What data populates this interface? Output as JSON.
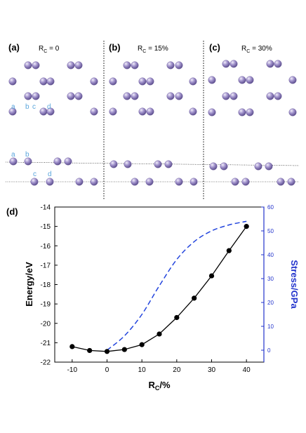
{
  "panels": [
    {
      "letter": "(a)",
      "label_main": "R",
      "label_sub": "C",
      "label_rest": " = 0"
    },
    {
      "letter": "(b)",
      "label_main": "R",
      "label_sub": "C",
      "label_rest": " = 15%"
    },
    {
      "letter": "(c)",
      "label_main": "R",
      "label_sub": "C",
      "label_rest": " = 30%"
    }
  ],
  "atom_labels": {
    "top": [
      "a",
      "b",
      "c",
      "d"
    ],
    "bottom": [
      "a",
      "b",
      "c",
      "d"
    ]
  },
  "colors": {
    "atom": "#8d7fba",
    "atom_label": "#5aa6dc",
    "energy_line": "#000000",
    "stress_line": "#2244dd",
    "stress_axis": "#2233cc"
  },
  "chart_data": {
    "panel": "(d)",
    "type": "line",
    "xlabel_main": "R",
    "xlabel_sub": "C",
    "xlabel_rest": "/%",
    "ylabel": "Energy/eV",
    "y2label": "Stress/GPa",
    "xlim": [
      -15,
      45
    ],
    "ylim": [
      -22,
      -14
    ],
    "y2lim": [
      -5,
      60
    ],
    "xticks": [
      -10,
      0,
      10,
      20,
      30,
      40
    ],
    "yticks": [
      -22,
      -21,
      -20,
      -19,
      -18,
      -17,
      -16,
      -15,
      -14
    ],
    "y2ticks": [
      0,
      10,
      20,
      30,
      40,
      50,
      60
    ],
    "series": [
      {
        "style": "solid-markers",
        "axis": "left",
        "x": [
          -10,
          -5,
          0,
          5,
          10,
          15,
          20,
          25,
          30,
          35,
          40
        ],
        "y": [
          -21.2,
          -21.4,
          -21.45,
          -21.35,
          -21.1,
          -20.55,
          -19.7,
          -18.7,
          -17.55,
          -16.25,
          -15.0
        ]
      },
      {
        "style": "dashed",
        "axis": "right",
        "x": [
          0,
          5,
          10,
          15,
          20,
          25,
          30,
          35,
          40
        ],
        "y": [
          0,
          6,
          15,
          27,
          38,
          45.5,
          50,
          52.5,
          54
        ]
      }
    ]
  }
}
